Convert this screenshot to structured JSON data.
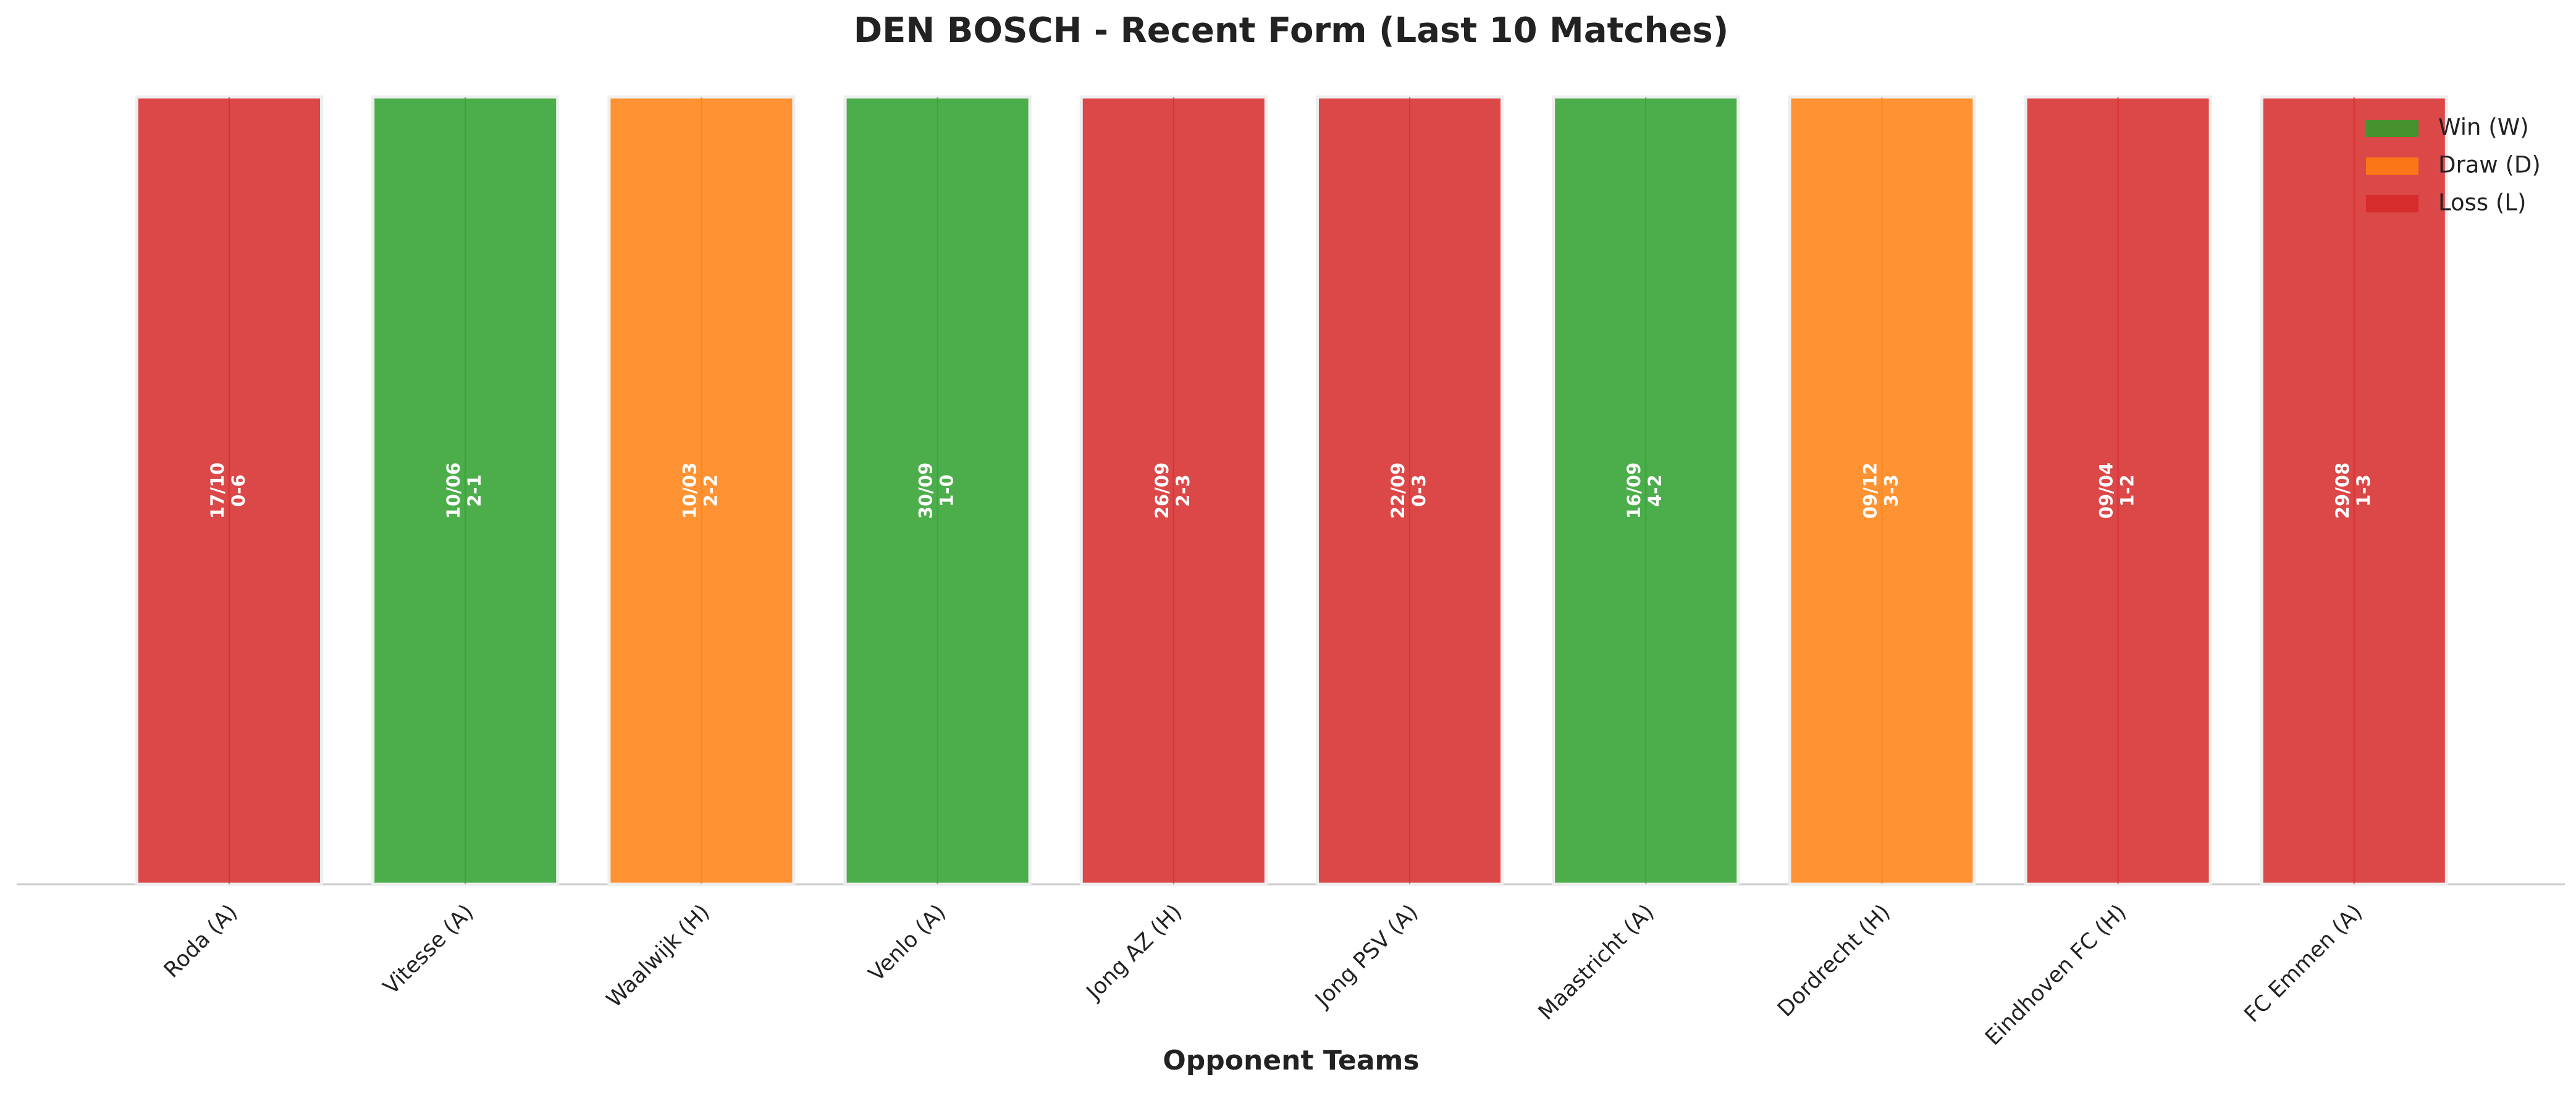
{
  "chart_data": {
    "type": "bar",
    "title": "DEN BOSCH - Recent Form (Last 10 Matches)",
    "xlabel": "Opponent Teams",
    "categories": [
      "Roda (A)",
      "Vitesse (A)",
      "Waalwijk (H)",
      "Venlo (A)",
      "Jong AZ (H)",
      "Jong PSV (A)",
      "Maastricht (A)",
      "Dordrecht (H)",
      "Eindhoven FC (H)",
      "FC Emmen (A)"
    ],
    "values": [
      1,
      1,
      1,
      1,
      1,
      1,
      1,
      1,
      1,
      1
    ],
    "ylim": [
      0,
      1
    ],
    "dates": [
      "17/10",
      "10/06",
      "10/03",
      "30/09",
      "26/09",
      "22/09",
      "16/09",
      "09/12",
      "09/04",
      "29/08"
    ],
    "scores": [
      "0-6",
      "2-1",
      "2-2",
      "1-0",
      "2-3",
      "0-3",
      "4-2",
      "3-3",
      "1-2",
      "1-3"
    ],
    "colors": [
      "#d62728",
      "#2ca02c",
      "#ff7f0e",
      "#2ca02c",
      "#d62728",
      "#d62728",
      "#2ca02c",
      "#ff7f0e",
      "#d62728",
      "#d62728"
    ],
    "legend": [
      {
        "name": "Win (W)",
        "color": "#2ca02c"
      },
      {
        "name": "Draw (D)",
        "color": "#ff7f0e"
      },
      {
        "name": "Loss (L)",
        "color": "#d62728"
      }
    ],
    "legend_loc": "upper right"
  }
}
